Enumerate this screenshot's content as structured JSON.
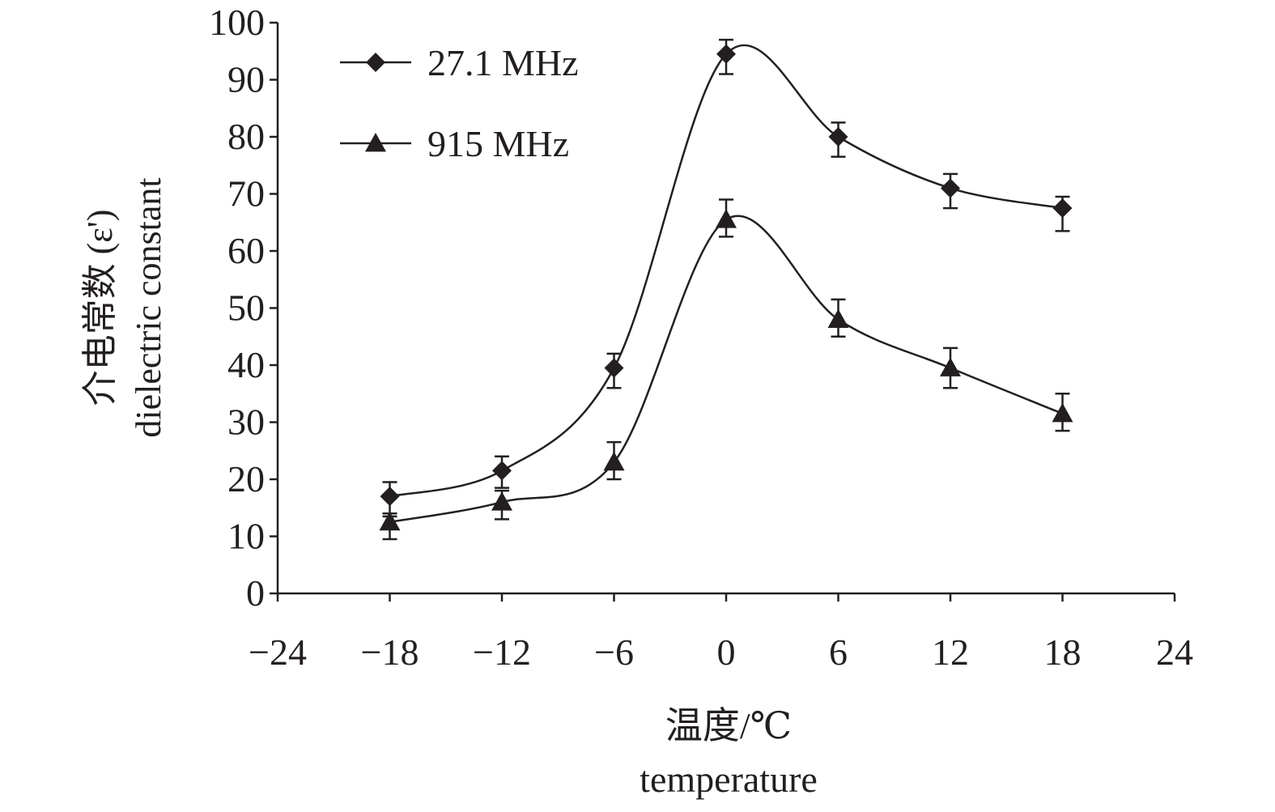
{
  "chart_data": {
    "type": "line",
    "xlabel_zh": "温度/℃",
    "xlabel_en": "temperature",
    "ylabel_zh": "介电常数 (ε')",
    "ylabel_en": "dielectric constant",
    "xlim": [
      -24,
      24
    ],
    "ylim": [
      0,
      100
    ],
    "x_ticks": [
      -24,
      -18,
      -12,
      -6,
      0,
      6,
      12,
      18,
      24
    ],
    "x_tick_labels": [
      "−24",
      "−18",
      "−12",
      "−6",
      "0",
      "6",
      "12",
      "18",
      "24"
    ],
    "y_ticks": [
      0,
      10,
      20,
      30,
      40,
      50,
      60,
      70,
      80,
      90,
      100
    ],
    "y_tick_labels": [
      "0",
      "10",
      "20",
      "30",
      "40",
      "50",
      "60",
      "70",
      "80",
      "90",
      "100"
    ],
    "grid": false,
    "legend_position": "top-left",
    "series": [
      {
        "name": "27.1 MHz",
        "marker": "diamond",
        "x": [
          -18,
          -12,
          -6,
          0,
          6,
          12,
          18
        ],
        "y": [
          17.0,
          21.5,
          39.5,
          94.5,
          80.0,
          71.0,
          67.5
        ],
        "err_upper": [
          19.5,
          24.0,
          42.0,
          97.0,
          82.5,
          73.5,
          69.5
        ],
        "err_lower": [
          14.0,
          18.5,
          36.0,
          91.0,
          76.5,
          67.5,
          63.5
        ]
      },
      {
        "name": "915 MHz",
        "marker": "triangle",
        "x": [
          -18,
          -12,
          -6,
          0,
          6,
          12,
          18
        ],
        "y": [
          12.5,
          16.0,
          23.0,
          65.5,
          48.0,
          39.5,
          31.5
        ],
        "err_upper": [
          13.5,
          18.0,
          26.5,
          69.0,
          51.5,
          43.0,
          35.0
        ],
        "err_lower": [
          9.5,
          13.0,
          20.0,
          62.5,
          45.0,
          36.0,
          28.5
        ]
      }
    ],
    "colors": {
      "ink": "#231f20",
      "background": "#ffffff"
    }
  }
}
